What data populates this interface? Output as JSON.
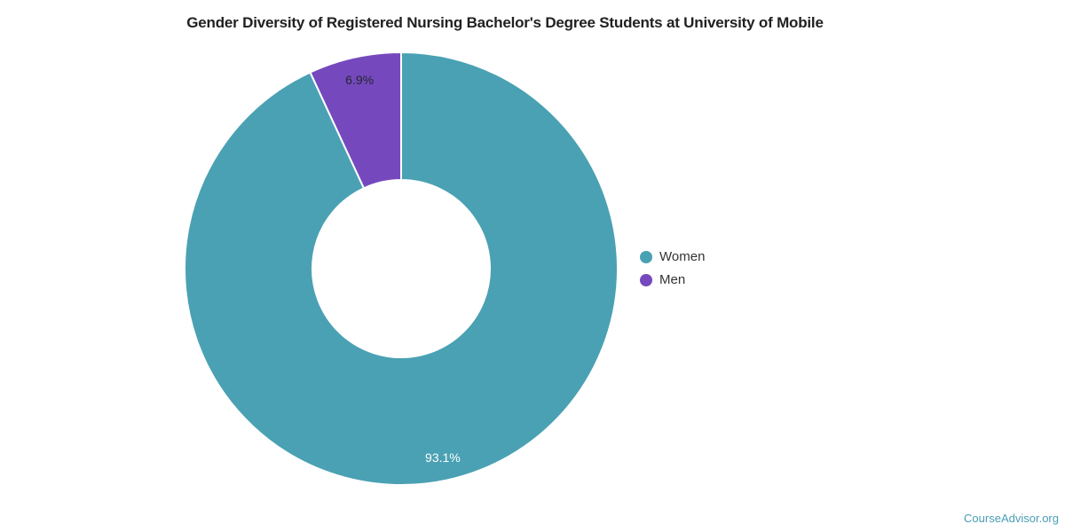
{
  "page": {
    "background_color": "#ffffff",
    "title_color": "#212121"
  },
  "chart_data": {
    "type": "pie",
    "title": "Gender Diversity of Registered Nursing Bachelor's Degree Students at University of Mobile",
    "categories": [
      "Women",
      "Men"
    ],
    "values": [
      93.1,
      6.9
    ],
    "labels": [
      "93.1%",
      "6.9%"
    ],
    "colors": [
      "#4AA1B3",
      "#7549BD"
    ],
    "label_colors": [
      "#FFFFFF",
      "#26262E"
    ],
    "legend": {
      "position": "right",
      "entries": [
        "Women",
        "Men"
      ],
      "text_color": "#333333"
    },
    "donut": {
      "inner_ratio": 0.41,
      "start_angle_deg": 0,
      "direction": "clockwise",
      "border_color": "#FFFFFF",
      "border_width": 2
    }
  },
  "footer": {
    "link_label": "CourseAdvisor.org",
    "link_color": "#4A9EB6"
  }
}
